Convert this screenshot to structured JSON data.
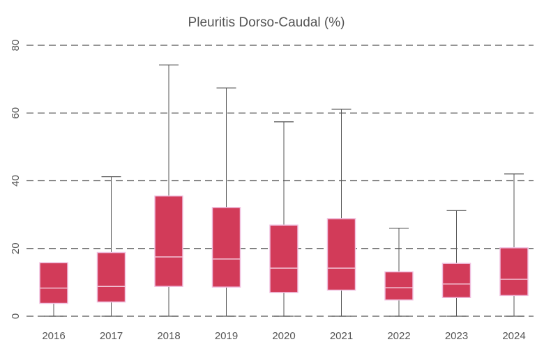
{
  "chart_data": {
    "type": "boxplot",
    "title": "Pleuritis Dorso-Caudal (%)",
    "xlabel": "",
    "ylabel": "",
    "ylim": [
      0,
      80
    ],
    "yticks": [
      0,
      20,
      40,
      60,
      80
    ],
    "grid": "horizontal-dashed",
    "categories": [
      "2016",
      "2017",
      "2018",
      "2019",
      "2020",
      "2021",
      "2022",
      "2023",
      "2024"
    ],
    "boxes": [
      {
        "category": "2016",
        "min": 0,
        "q1": 3.8,
        "median": 8.3,
        "q3": 15.8,
        "max": 15.8
      },
      {
        "category": "2017",
        "min": 0,
        "q1": 4.2,
        "median": 8.8,
        "q3": 18.8,
        "max": 41.2
      },
      {
        "category": "2018",
        "min": 0,
        "q1": 8.8,
        "median": 17.5,
        "q3": 35.5,
        "max": 74.2
      },
      {
        "category": "2019",
        "min": 0,
        "q1": 8.6,
        "median": 16.9,
        "q3": 32.1,
        "max": 67.4
      },
      {
        "category": "2020",
        "min": 0,
        "q1": 7.0,
        "median": 14.2,
        "q3": 26.9,
        "max": 57.4
      },
      {
        "category": "2021",
        "min": 0,
        "q1": 7.7,
        "median": 14.2,
        "q3": 28.8,
        "max": 61.1
      },
      {
        "category": "2022",
        "min": 0,
        "q1": 4.8,
        "median": 8.4,
        "q3": 13.1,
        "max": 26.0
      },
      {
        "category": "2023",
        "min": 0,
        "q1": 5.5,
        "median": 9.5,
        "q3": 15.6,
        "max": 31.2
      },
      {
        "category": "2024",
        "min": 0,
        "q1": 6.1,
        "median": 10.9,
        "q3": 20.2,
        "max": 42.0
      }
    ],
    "colors": {
      "box_fill": "#d23b59",
      "box_border": "#f0c0e0",
      "median": "#f3c6d8",
      "whisker": "#555555",
      "grid": "#555555",
      "text": "#555555"
    }
  }
}
